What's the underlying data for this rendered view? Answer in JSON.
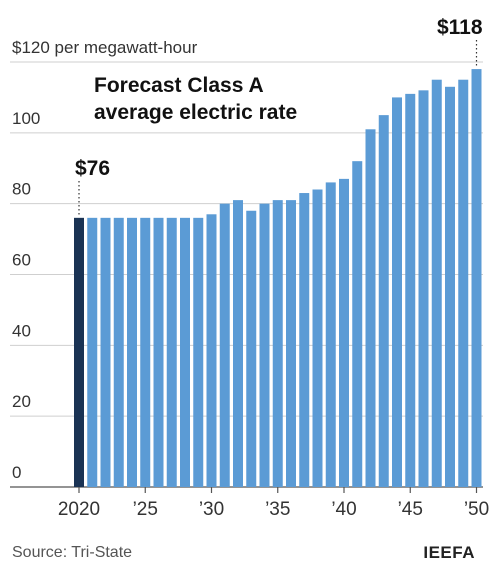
{
  "chart_data": {
    "type": "bar",
    "title": "Forecast Class A average electric rate",
    "title_lines": [
      "Forecast Class A",
      "average electric rate"
    ],
    "unit_label": "$120 per megawatt-hour",
    "x": [
      2020,
      2021,
      2022,
      2023,
      2024,
      2025,
      2026,
      2027,
      2028,
      2029,
      2030,
      2031,
      2032,
      2033,
      2034,
      2035,
      2036,
      2037,
      2038,
      2039,
      2040,
      2041,
      2042,
      2043,
      2044,
      2045,
      2046,
      2047,
      2048,
      2049,
      2050
    ],
    "values": [
      76,
      76,
      76,
      76,
      76,
      76,
      76,
      76,
      76,
      76,
      77,
      80,
      81,
      78,
      80,
      81,
      81,
      83,
      84,
      86,
      87,
      92,
      101,
      105,
      110,
      111,
      112,
      115,
      113,
      115,
      118
    ],
    "ylim": [
      0,
      120
    ],
    "yticks": [
      0,
      20,
      40,
      60,
      80,
      100
    ],
    "xticks": [
      {
        "year": 2020,
        "label": "2020"
      },
      {
        "year": 2025,
        "label": "’25"
      },
      {
        "year": 2030,
        "label": "’30"
      },
      {
        "year": 2035,
        "label": "’35"
      },
      {
        "year": 2040,
        "label": "’40"
      },
      {
        "year": 2045,
        "label": "’45"
      },
      {
        "year": 2050,
        "label": "’50"
      }
    ],
    "annotations": [
      {
        "year": 2020,
        "label": "$76"
      },
      {
        "year": 2050,
        "label": "$118"
      }
    ],
    "highlight_year": 2020,
    "grid": true,
    "colors": {
      "bar": "#5b9bd5",
      "highlight": "#1a3354",
      "grid": "#cfcfcf",
      "axis": "#555555"
    }
  },
  "footer": {
    "source": "Source: Tri-State",
    "brand": "IEEFA"
  }
}
